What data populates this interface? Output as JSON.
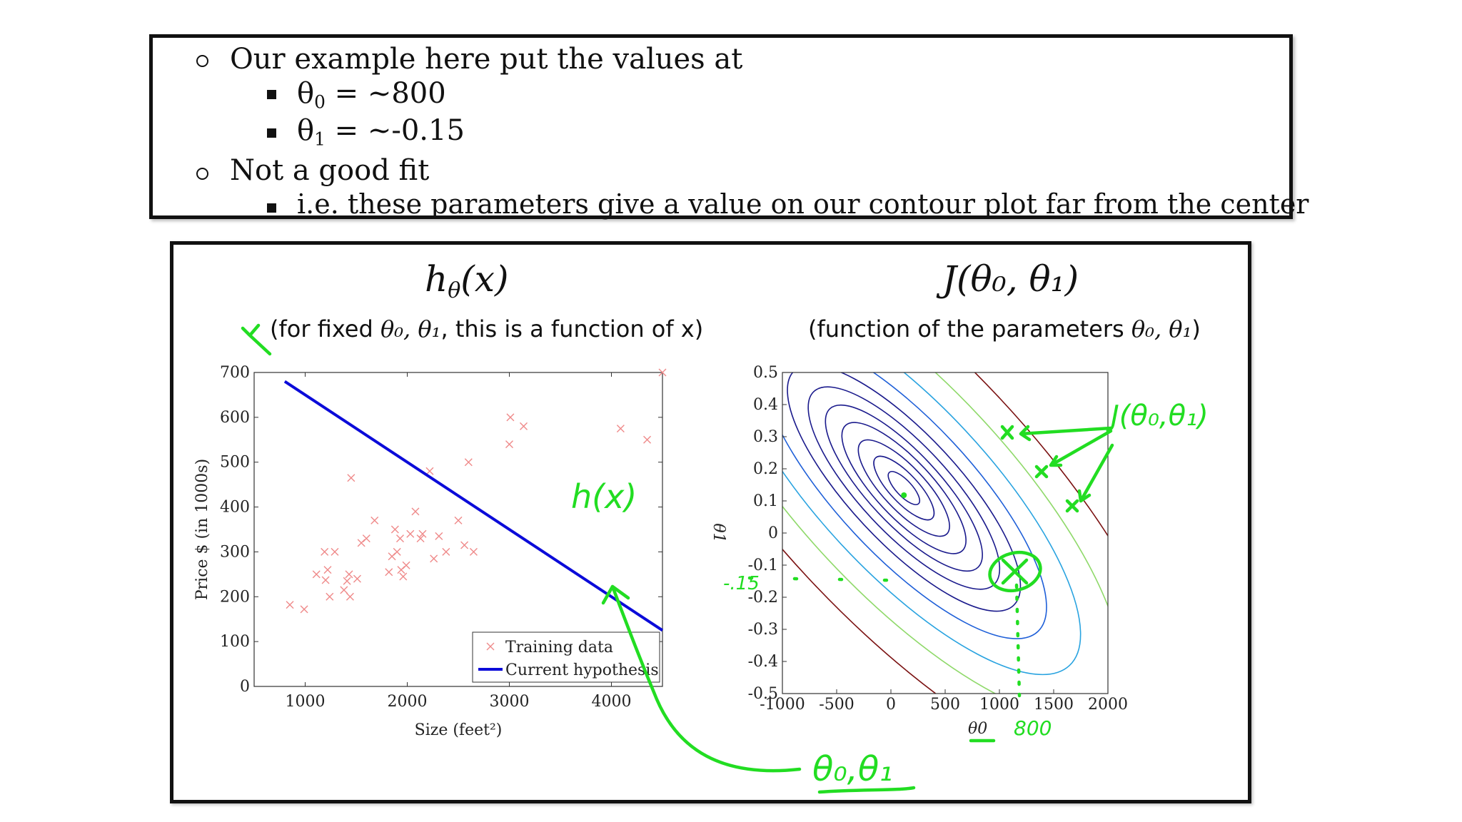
{
  "notes": {
    "line1": "Our example here put the values at",
    "theta0": {
      "symbol": "θ",
      "sub": "0",
      "value": "= ~800"
    },
    "theta1": {
      "symbol": "θ",
      "sub": "1",
      "value": "= ~-0.15"
    },
    "line4": "Not a good fit",
    "line5": "i.e. these parameters give a value on our contour plot far from the center"
  },
  "left_title": {
    "h": "h",
    "sub": "θ",
    "rest": "(x)"
  },
  "left_sub": {
    "pre": "(for fixed ",
    "math": "θ₀, θ₁",
    "post": ", this is a function of x)"
  },
  "right_title": "J(θ₀, θ₁)",
  "right_sub": {
    "pre": "(function of the parameters ",
    "math": "θ₀, θ₁",
    "post": ")"
  },
  "handwriting": {
    "hx": "h(x)",
    "j_label": "J(θ₀,θ₁)",
    "theta_label": "θ₀,θ₁",
    "val_x": "800",
    "val_y": "-.15"
  },
  "colors": {
    "hypothesis": "#0b0bd9",
    "training": "#ef8a8a",
    "ink": "#22dd22",
    "contour_inner": "#1a1a8c",
    "contour_blue": "#1e5fd8",
    "contour_cyan": "#29a3e0",
    "contour_green": "#8fd96a",
    "contour_dark": "#7a1010"
  },
  "chart_data": [
    {
      "type": "scatter",
      "xlabel": "Size (feet²)",
      "ylabel": "Price $ (in 1000s)",
      "xlim": [
        500,
        4500
      ],
      "ylim": [
        0,
        700
      ],
      "xticks": [
        "1000",
        "2000",
        "3000",
        "4000"
      ],
      "yticks": [
        "0",
        "100",
        "200",
        "300",
        "400",
        "500",
        "600",
        "700"
      ],
      "series": [
        {
          "name": "Training data",
          "marker": "x",
          "points": [
            [
              850,
              182
            ],
            [
              990,
              172
            ],
            [
              1110,
              250
            ],
            [
              1190,
              300
            ],
            [
              1200,
              237
            ],
            [
              1220,
              260
            ],
            [
              1240,
              200
            ],
            [
              1290,
              300
            ],
            [
              1380,
              215
            ],
            [
              1410,
              235
            ],
            [
              1430,
              250
            ],
            [
              1440,
              200
            ],
            [
              1450,
              465
            ],
            [
              1510,
              240
            ],
            [
              1550,
              320
            ],
            [
              1600,
              330
            ],
            [
              1680,
              370
            ],
            [
              1820,
              255
            ],
            [
              1850,
              290
            ],
            [
              1880,
              350
            ],
            [
              1900,
              300
            ],
            [
              1930,
              330
            ],
            [
              1940,
              260
            ],
            [
              1960,
              245
            ],
            [
              1990,
              270
            ],
            [
              2030,
              340
            ],
            [
              2080,
              390
            ],
            [
              2130,
              330
            ],
            [
              2150,
              340
            ],
            [
              2220,
              480
            ],
            [
              2260,
              285
            ],
            [
              2310,
              335
            ],
            [
              2380,
              300
            ],
            [
              2500,
              370
            ],
            [
              2560,
              315
            ],
            [
              2600,
              500
            ],
            [
              2650,
              300
            ],
            [
              3000,
              540
            ],
            [
              3010,
              600
            ],
            [
              3140,
              580
            ],
            [
              4090,
              575
            ],
            [
              4350,
              550
            ],
            [
              4500,
              700
            ]
          ]
        },
        {
          "name": "Current hypothesis",
          "line": [
            [
              800,
              680
            ],
            [
              4500,
              125
            ]
          ]
        }
      ],
      "legend": "bottom-right"
    },
    {
      "type": "contour",
      "xlabel": "θ0",
      "ylabel": "θ1",
      "xlim": [
        -1000,
        2000
      ],
      "ylim": [
        -0.5,
        0.5
      ],
      "xticks": [
        "-1000",
        "-500",
        "0",
        "500",
        "1000",
        "1500",
        "2000"
      ],
      "yticks": [
        "-0.5",
        "-0.4",
        "-0.3",
        "-0.2",
        "-0.1",
        "0",
        "0.1",
        "0.2",
        "0.3",
        "0.4",
        "0.5"
      ],
      "center": [
        120,
        0.14
      ],
      "highlighted_point": [
        800,
        -0.15
      ]
    }
  ]
}
